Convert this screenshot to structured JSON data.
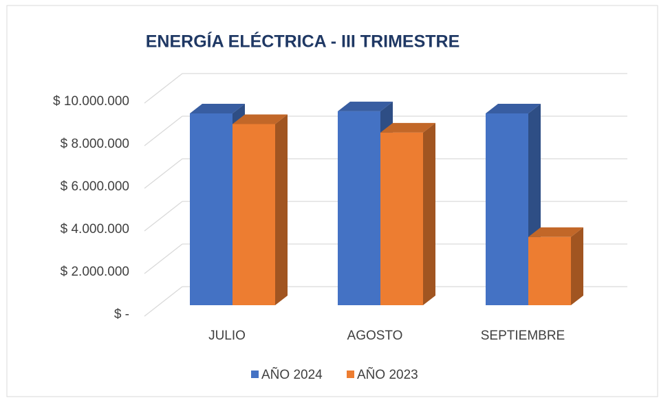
{
  "chart_data": {
    "type": "bar3d",
    "title": "ENERGÍA ELÉCTRICA - III TRIMESTRE",
    "categories": [
      "JULIO",
      "AGOSTO",
      "SEPTIEMBRE"
    ],
    "series": [
      {
        "name": "AÑO 2024",
        "color": "#4472c4",
        "values": [
          9000000,
          9100000,
          9000000
        ]
      },
      {
        "name": "AÑO 2023",
        "color": "#ed7d31",
        "values": [
          8500000,
          8100000,
          3200000
        ]
      }
    ],
    "ylim": [
      0,
      10000000
    ],
    "yticks": [
      {
        "value": 0,
        "label": "$ -"
      },
      {
        "value": 2000000,
        "label": "$ 2.000.000"
      },
      {
        "value": 4000000,
        "label": "$ 4.000.000"
      },
      {
        "value": 6000000,
        "label": "$ 6.000.000"
      },
      {
        "value": 8000000,
        "label": "$ 8.000.000"
      },
      {
        "value": 10000000,
        "label": "$ 10.000.000"
      }
    ],
    "grid": true,
    "legend": "bottom"
  }
}
